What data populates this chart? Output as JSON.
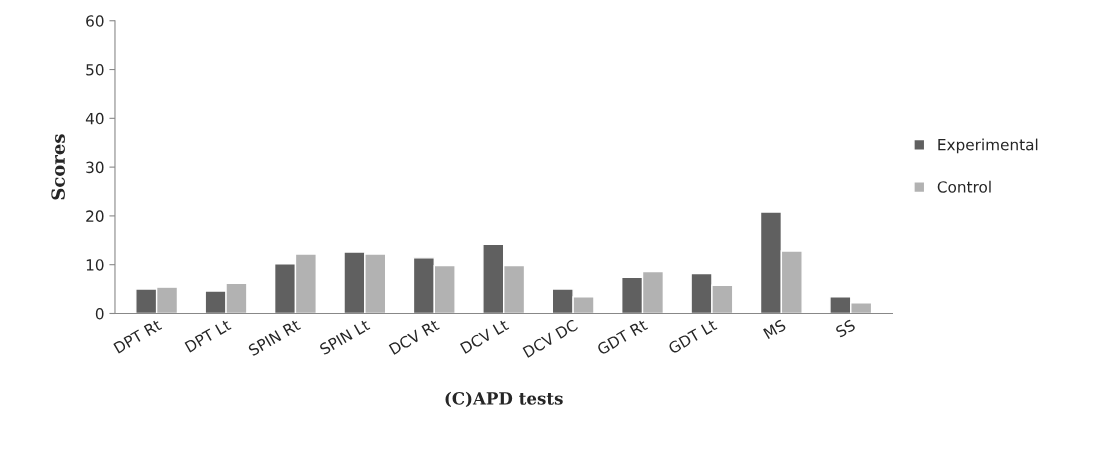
{
  "chart_data": {
    "type": "bar",
    "xlabel": "(C)APD tests",
    "ylabel": "Scores",
    "categories": [
      "DPT Rt",
      "DPT Lt",
      "SPIN Rt",
      "SPIN Lt",
      "DCV Rt",
      "DCV Lt",
      "DCV DC",
      "GDT Rt",
      "GDT Lt",
      "MS",
      "SS"
    ],
    "series": [
      {
        "name": "Experimental",
        "color": "#606060",
        "values": [
          5.0,
          4.6,
          10.2,
          12.6,
          11.4,
          14.2,
          5.0,
          7.4,
          8.2,
          20.8,
          3.4
        ]
      },
      {
        "name": "Control",
        "color": "#b2b2b2",
        "values": [
          5.4,
          6.2,
          12.2,
          12.2,
          9.8,
          9.8,
          3.4,
          8.6,
          5.8,
          12.8,
          2.2
        ]
      }
    ],
    "ylim": [
      0,
      60
    ],
    "yticks": [
      0,
      10,
      20,
      30,
      40,
      50,
      60
    ],
    "grid": false,
    "legend": "right"
  }
}
